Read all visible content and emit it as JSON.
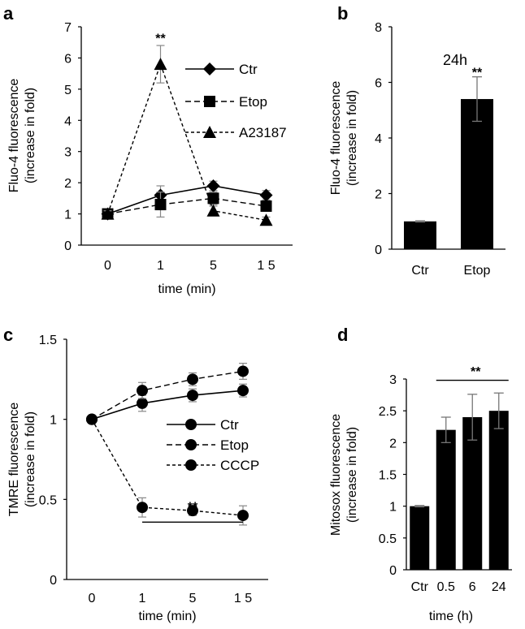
{
  "chart_data": [
    {
      "panel": "a",
      "type": "line",
      "xlabel": "time (min)",
      "ylabel": [
        "Fluo-4 fluorescence",
        "(increase in fold)"
      ],
      "categories": [
        "0",
        "1",
        "5",
        "15"
      ],
      "ylim": [
        0,
        7
      ],
      "yticks": [
        0,
        1,
        2,
        3,
        4,
        5,
        6,
        7
      ],
      "series": [
        {
          "name": "Ctr",
          "marker": "diamond",
          "dash": "solid",
          "values": [
            1.0,
            1.6,
            1.9,
            1.6
          ],
          "errors": [
            0.1,
            0.3,
            0.15,
            0.15
          ]
        },
        {
          "name": "Etop",
          "marker": "square",
          "dash": "dashed",
          "values": [
            1.0,
            1.3,
            1.5,
            1.25
          ],
          "errors": [
            0.1,
            0.4,
            0.2,
            0.15
          ]
        },
        {
          "name": "A23187",
          "marker": "triangle",
          "dash": "dotted",
          "values": [
            1.0,
            5.8,
            1.1,
            0.8
          ],
          "errors": [
            0.1,
            0.6,
            0.15,
            0.1
          ]
        }
      ],
      "annotations": [
        {
          "text": "**",
          "category": "1",
          "y": 6.55
        }
      ]
    },
    {
      "panel": "b",
      "type": "bar",
      "title": "24h",
      "ylabel": [
        "Fluo-4 fluorescence",
        "(increase in fold)"
      ],
      "categories": [
        "Ctr",
        "Etop"
      ],
      "values": [
        1.0,
        5.4
      ],
      "errors": [
        0.02,
        0.8
      ],
      "ylim": [
        0,
        8
      ],
      "yticks": [
        0,
        2,
        4,
        6,
        8
      ],
      "annotations": [
        {
          "text": "**",
          "category": "Etop",
          "y": 6.5
        }
      ]
    },
    {
      "panel": "c",
      "type": "line",
      "xlabel": "time (min)",
      "ylabel": [
        "TMRE fluorescence",
        "(increase in fold)"
      ],
      "categories": [
        "0",
        "1",
        "5",
        "15"
      ],
      "ylim": [
        0,
        1.5
      ],
      "yticks": [
        0,
        0.5,
        1,
        1.5
      ],
      "yticklabels": [
        "0",
        "0.5",
        "1",
        "1.5"
      ],
      "series": [
        {
          "name": "Ctr",
          "marker": "circle",
          "dash": "solid",
          "values": [
            1.0,
            1.1,
            1.15,
            1.18
          ],
          "errors": [
            0,
            0.05,
            0.04,
            0.04
          ]
        },
        {
          "name": "Etop",
          "marker": "circle",
          "dash": "dashed",
          "values": [
            1.0,
            1.18,
            1.25,
            1.3
          ],
          "errors": [
            0,
            0.05,
            0.04,
            0.05
          ]
        },
        {
          "name": "CCCP",
          "marker": "circle",
          "dash": "dotted",
          "values": [
            1.0,
            0.45,
            0.43,
            0.4
          ],
          "errors": [
            0,
            0.06,
            0.03,
            0.06
          ]
        }
      ],
      "annotations": [
        {
          "text": "**",
          "y": 0.53,
          "bar_from": "1",
          "bar_to": "15",
          "bar_y": 0.5
        }
      ]
    },
    {
      "panel": "d",
      "type": "bar",
      "xlabel": "time (h)",
      "ylabel": [
        "Mitosox fluorescence",
        "(increase in fold)"
      ],
      "categories": [
        "Ctr",
        "0.5",
        "6",
        "24"
      ],
      "values": [
        1.0,
        2.2,
        2.4,
        2.5
      ],
      "errors": [
        0.01,
        0.2,
        0.36,
        0.28
      ],
      "ylim": [
        0,
        3
      ],
      "yticks": [
        0,
        0.5,
        1,
        1.5,
        2,
        2.5,
        3
      ],
      "yticklabels": [
        "0",
        "0.5",
        "1",
        "1.5",
        "2",
        "2.5",
        "3"
      ],
      "annotations": [
        {
          "text": "**",
          "y": 3.13,
          "bar_from": "0.5",
          "bar_to": "24",
          "bar_y": 2.98
        }
      ]
    }
  ]
}
